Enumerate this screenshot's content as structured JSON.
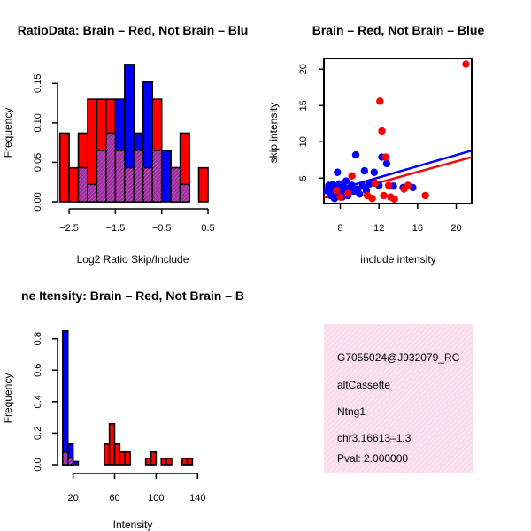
{
  "colors": {
    "brain": "#ff0000",
    "not_brain": "#0000ff",
    "overlap": "#9b30a0",
    "info_bg": "#f8dcec",
    "info_hatch": "#ffffff",
    "pval": "#c00000"
  },
  "chart_data": [
    {
      "type": "bar",
      "title": "RatioData: Brain – Red, Not Brain – Blu",
      "xlabel": "Log2 Ratio Skip/Include",
      "ylabel": "Frequency",
      "xlim": [
        -2.75,
        0.5
      ],
      "ylim": [
        0,
        0.175
      ],
      "xticks": [
        -2.5,
        -1.5,
        -0.5,
        0.5
      ],
      "xtick_labels": [
        "−2.5",
        "−1.5",
        "−0.5",
        "0.5"
      ],
      "yticks": [
        0,
        0.05,
        0.1,
        0.15
      ],
      "ytick_labels": [
        "0.00",
        "0.05",
        "0.10",
        "0.15"
      ],
      "bin_width": 0.2,
      "series": [
        {
          "name": "Brain",
          "color": "brain",
          "bins": [
            {
              "x0": -2.7,
              "v": 0.087
            },
            {
              "x0": -2.5,
              "v": 0.043
            },
            {
              "x0": -2.3,
              "v": 0.087
            },
            {
              "x0": -2.1,
              "v": 0.13
            },
            {
              "x0": -1.9,
              "v": 0.13
            },
            {
              "x0": -1.7,
              "v": 0.13
            },
            {
              "x0": -1.5,
              "v": 0.065
            },
            {
              "x0": -1.3,
              "v": 0.043
            },
            {
              "x0": -1.1,
              "v": 0.065
            },
            {
              "x0": -0.9,
              "v": 0.043
            },
            {
              "x0": -0.7,
              "v": 0.13
            },
            {
              "x0": -0.3,
              "v": 0.043
            },
            {
              "x0": -0.1,
              "v": 0.087
            },
            {
              "x0": 0.3,
              "v": 0.043
            }
          ]
        },
        {
          "name": "Not Brain",
          "color": "not_brain",
          "bins": [
            {
              "x0": -2.3,
              "v": 0.043
            },
            {
              "x0": -2.1,
              "v": 0.022
            },
            {
              "x0": -1.9,
              "v": 0.065
            },
            {
              "x0": -1.7,
              "v": 0.087
            },
            {
              "x0": -1.5,
              "v": 0.13
            },
            {
              "x0": -1.3,
              "v": 0.174
            },
            {
              "x0": -1.1,
              "v": 0.087
            },
            {
              "x0": -0.9,
              "v": 0.152
            },
            {
              "x0": -0.7,
              "v": 0.065
            },
            {
              "x0": -0.5,
              "v": 0.065
            },
            {
              "x0": -0.3,
              "v": 0.043
            },
            {
              "x0": -0.1,
              "v": 0.022
            }
          ]
        }
      ]
    },
    {
      "type": "scatter",
      "title": "Brain – Red, Not Brain – Blue",
      "xlabel": "include intensity",
      "ylabel": "skip intensity",
      "xlim": [
        6.3,
        21.6
      ],
      "ylim": [
        1.5,
        21.5
      ],
      "xticks": [
        8,
        12,
        16,
        20
      ],
      "yticks": [
        5,
        10,
        15,
        20
      ],
      "series": [
        {
          "name": "Not Brain",
          "color": "not_brain",
          "points": [
            [
              6.6,
              3.3
            ],
            [
              6.8,
              4.0
            ],
            [
              7.0,
              2.6
            ],
            [
              7.1,
              3.6
            ],
            [
              7.2,
              4.1
            ],
            [
              7.3,
              3.0
            ],
            [
              7.4,
              2.2
            ],
            [
              7.5,
              3.9
            ],
            [
              7.6,
              3.4
            ],
            [
              7.7,
              5.8
            ],
            [
              7.8,
              2.8
            ],
            [
              7.9,
              4.2
            ],
            [
              8.0,
              3.6
            ],
            [
              8.1,
              3.1
            ],
            [
              8.2,
              2.4
            ],
            [
              8.3,
              3.9
            ],
            [
              8.4,
              3.3
            ],
            [
              8.6,
              4.6
            ],
            [
              8.7,
              3.0
            ],
            [
              8.8,
              2.6
            ],
            [
              9.0,
              3.7
            ],
            [
              9.2,
              4.0
            ],
            [
              9.4,
              3.2
            ],
            [
              9.6,
              8.2
            ],
            [
              9.8,
              3.5
            ],
            [
              10.0,
              2.8
            ],
            [
              10.3,
              3.9
            ],
            [
              10.5,
              6.0
            ],
            [
              10.7,
              3.3
            ],
            [
              11.0,
              4.2
            ],
            [
              11.5,
              5.8
            ],
            [
              12.0,
              4.0
            ],
            [
              12.3,
              7.9
            ],
            [
              12.8,
              7.0
            ],
            [
              13.5,
              3.9
            ],
            [
              14.5,
              3.7
            ],
            [
              15.5,
              3.7
            ]
          ]
        },
        {
          "name": "Brain",
          "color": "brain",
          "points": [
            [
              7.6,
              3.3
            ],
            [
              8.0,
              2.4
            ],
            [
              8.8,
              2.9
            ],
            [
              9.2,
              5.3
            ],
            [
              10.8,
              2.6
            ],
            [
              11.3,
              2.2
            ],
            [
              11.6,
              4.3
            ],
            [
              12.1,
              15.6
            ],
            [
              12.3,
              11.5
            ],
            [
              12.5,
              2.6
            ],
            [
              12.7,
              7.9
            ],
            [
              13.0,
              4.0
            ],
            [
              13.2,
              2.4
            ],
            [
              13.6,
              2.1
            ],
            [
              14.6,
              3.5
            ],
            [
              15.0,
              4.0
            ],
            [
              16.8,
              2.6
            ],
            [
              21.0,
              20.7
            ]
          ]
        }
      ],
      "fit_lines": [
        {
          "name": "Not Brain",
          "color": "not_brain",
          "x": [
            6.3,
            21.6
          ],
          "y": [
            2.9,
            8.8
          ]
        },
        {
          "name": "Brain",
          "color": "brain",
          "x": [
            6.3,
            21.6
          ],
          "y": [
            2.3,
            7.9
          ]
        }
      ]
    },
    {
      "type": "bar",
      "title": "ne Itensity: Brain – Red, Not Brain – B",
      "xlabel": "Intensity",
      "ylabel": "Frequency",
      "xlim": [
        5,
        150
      ],
      "ylim": [
        0,
        0.86
      ],
      "xticks": [
        20,
        60,
        100,
        140
      ],
      "yticks": [
        0,
        0.2,
        0.4,
        0.6,
        0.8
      ],
      "ytick_labels": [
        "0.0",
        "0.2",
        "0.4",
        "0.6",
        "0.8"
      ],
      "bin_width": 5,
      "series": [
        {
          "name": "Not Brain",
          "color": "not_brain",
          "bins": [
            {
              "x0": 10,
              "v": 0.85
            },
            {
              "x0": 15,
              "v": 0.13
            },
            {
              "x0": 20,
              "v": 0.02
            }
          ]
        },
        {
          "name": "Brain",
          "color": "brain",
          "bins": [
            {
              "x0": 10,
              "v": 0.08
            },
            {
              "x0": 15,
              "v": 0.04
            },
            {
              "x0": 50,
              "v": 0.13
            },
            {
              "x0": 55,
              "v": 0.26
            },
            {
              "x0": 60,
              "v": 0.13
            },
            {
              "x0": 65,
              "v": 0.08
            },
            {
              "x0": 70,
              "v": 0.08
            },
            {
              "x0": 90,
              "v": 0.04
            },
            {
              "x0": 95,
              "v": 0.08
            },
            {
              "x0": 105,
              "v": 0.04
            },
            {
              "x0": 110,
              "v": 0.04
            },
            {
              "x0": 125,
              "v": 0.04
            },
            {
              "x0": 130,
              "v": 0.04
            }
          ]
        }
      ]
    }
  ],
  "info_panel": {
    "id_line": "G7055024@J932079_RC",
    "event_type": "altCassette",
    "gene": "Ntng1",
    "location": "chr3.16613–1.3",
    "pval": "Pval: 2.000000"
  }
}
